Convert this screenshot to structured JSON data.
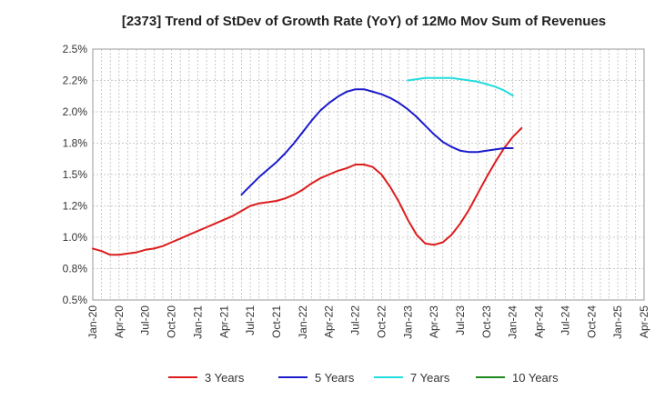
{
  "chart_data": {
    "type": "line",
    "title": "[2373]  Trend of StDev of Growth Rate (YoY) of 12Mo Mov Sum of Revenues",
    "xlabel": "",
    "ylabel": "",
    "x_ticks": [
      "Jan-20",
      "Apr-20",
      "Jul-20",
      "Oct-20",
      "Jan-21",
      "Apr-21",
      "Jul-21",
      "Oct-21",
      "Jan-22",
      "Apr-22",
      "Jul-22",
      "Oct-22",
      "Jan-23",
      "Apr-23",
      "Jul-23",
      "Oct-23",
      "Jan-24",
      "Apr-24",
      "Jul-24",
      "Oct-24",
      "Jan-25",
      "Apr-25"
    ],
    "y_ticks": [
      "0.5%",
      "0.8%",
      "1.0%",
      "1.2%",
      "1.5%",
      "1.8%",
      "2.0%",
      "2.2%",
      "2.5%"
    ],
    "ylim": [
      0.5,
      2.5
    ],
    "grid": true,
    "series": [
      {
        "name": "3 Years",
        "color": "#dd1c1c",
        "values": [
          0.91,
          0.89,
          0.86,
          0.86,
          0.87,
          0.88,
          0.9,
          0.91,
          0.93,
          0.96,
          0.99,
          1.02,
          1.05,
          1.08,
          1.11,
          1.14,
          1.17,
          1.21,
          1.25,
          1.27,
          1.28,
          1.29,
          1.31,
          1.34,
          1.38,
          1.43,
          1.47,
          1.5,
          1.53,
          1.55,
          1.58,
          1.58,
          1.56,
          1.5,
          1.4,
          1.28,
          1.14,
          1.02,
          0.95,
          0.94,
          0.96,
          1.02,
          1.11,
          1.22,
          1.35,
          1.48,
          1.6,
          1.71,
          1.8,
          1.87
        ]
      },
      {
        "name": "5 Years",
        "color": "#1b1bcc",
        "values": [
          null,
          null,
          null,
          null,
          null,
          null,
          null,
          null,
          null,
          null,
          null,
          null,
          null,
          null,
          null,
          null,
          null,
          1.34,
          1.41,
          1.48,
          1.54,
          1.6,
          1.67,
          1.75,
          1.84,
          1.93,
          2.01,
          2.07,
          2.12,
          2.16,
          2.18,
          2.18,
          2.16,
          2.14,
          2.11,
          2.07,
          2.02,
          1.96,
          1.89,
          1.82,
          1.76,
          1.72,
          1.69,
          1.68,
          1.68,
          1.69,
          1.7,
          1.71,
          1.71,
          null
        ]
      },
      {
        "name": "7 Years",
        "color": "#22dddd",
        "values": [
          null,
          null,
          null,
          null,
          null,
          null,
          null,
          null,
          null,
          null,
          null,
          null,
          null,
          null,
          null,
          null,
          null,
          null,
          null,
          null,
          null,
          null,
          null,
          null,
          null,
          null,
          null,
          null,
          null,
          null,
          null,
          null,
          null,
          null,
          null,
          null,
          2.25,
          2.26,
          2.27,
          2.27,
          2.27,
          2.27,
          2.26,
          2.25,
          2.24,
          2.22,
          2.2,
          2.17,
          2.13,
          null
        ]
      },
      {
        "name": "10 Years",
        "color": "#1b8a1b",
        "values": []
      }
    ],
    "legend_position": "bottom"
  }
}
